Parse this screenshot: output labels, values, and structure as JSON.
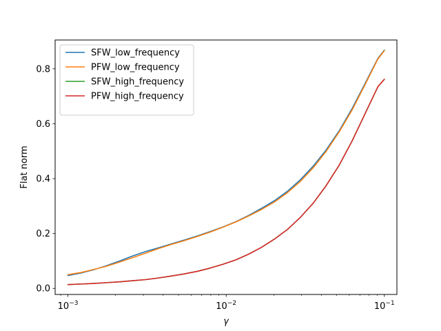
{
  "chart_data": {
    "type": "line",
    "xscale": "log",
    "xlim": [
      0.00083,
      0.12
    ],
    "ylim": [
      -0.022,
      0.905
    ],
    "xlabel": "γ",
    "ylabel": "Flat norm",
    "grid": false,
    "legend_position": "upper-left",
    "x_ticks": [
      0.001,
      0.01,
      0.1
    ],
    "x_tick_labels": [
      {
        "base": "10",
        "exp": "−3"
      },
      {
        "base": "10",
        "exp": "−2"
      },
      {
        "base": "10",
        "exp": "−1"
      }
    ],
    "y_ticks": [
      0.0,
      0.2,
      0.4,
      0.6,
      0.8
    ],
    "y_tick_labels": [
      "0.0",
      "0.2",
      "0.4",
      "0.6",
      "0.8"
    ],
    "x": [
      0.001,
      0.001207,
      0.001456,
      0.001758,
      0.002121,
      0.00256,
      0.00309,
      0.00373,
      0.004498,
      0.005429,
      0.006551,
      0.007906,
      0.009541,
      0.011514,
      0.013895,
      0.016768,
      0.020236,
      0.024421,
      0.029471,
      0.035565,
      0.04292,
      0.051795,
      0.062506,
      0.075431,
      0.09103,
      0.1
    ],
    "series": [
      {
        "name": "SFW_low_frequency",
        "color": "#1f77b4",
        "values": [
          0.047,
          0.056,
          0.068,
          0.083,
          0.1,
          0.118,
          0.134,
          0.148,
          0.162,
          0.176,
          0.191,
          0.207,
          0.224,
          0.243,
          0.266,
          0.292,
          0.32,
          0.354,
          0.396,
          0.446,
          0.505,
          0.574,
          0.655,
          0.746,
          0.838,
          0.868
        ]
      },
      {
        "name": "PFW_low_frequency",
        "color": "#ff7f0e",
        "values": [
          0.05,
          0.058,
          0.069,
          0.081,
          0.096,
          0.112,
          0.128,
          0.145,
          0.16,
          0.174,
          0.189,
          0.205,
          0.223,
          0.242,
          0.264,
          0.288,
          0.315,
          0.349,
          0.39,
          0.44,
          0.5,
          0.57,
          0.65,
          0.742,
          0.836,
          0.866
        ]
      },
      {
        "name": "SFW_high_frequency",
        "color": "#2ca02c",
        "values": [
          0.014,
          0.016,
          0.018,
          0.021,
          0.024,
          0.028,
          0.032,
          0.038,
          0.045,
          0.053,
          0.062,
          0.074,
          0.088,
          0.104,
          0.125,
          0.15,
          0.18,
          0.215,
          0.259,
          0.311,
          0.375,
          0.449,
          0.537,
          0.636,
          0.735,
          0.762
        ]
      },
      {
        "name": "PFW_high_frequency",
        "color": "#d62728",
        "values": [
          0.014,
          0.016,
          0.018,
          0.021,
          0.024,
          0.028,
          0.032,
          0.038,
          0.045,
          0.053,
          0.062,
          0.074,
          0.088,
          0.104,
          0.125,
          0.15,
          0.18,
          0.215,
          0.259,
          0.311,
          0.375,
          0.449,
          0.537,
          0.636,
          0.735,
          0.762
        ]
      }
    ]
  }
}
